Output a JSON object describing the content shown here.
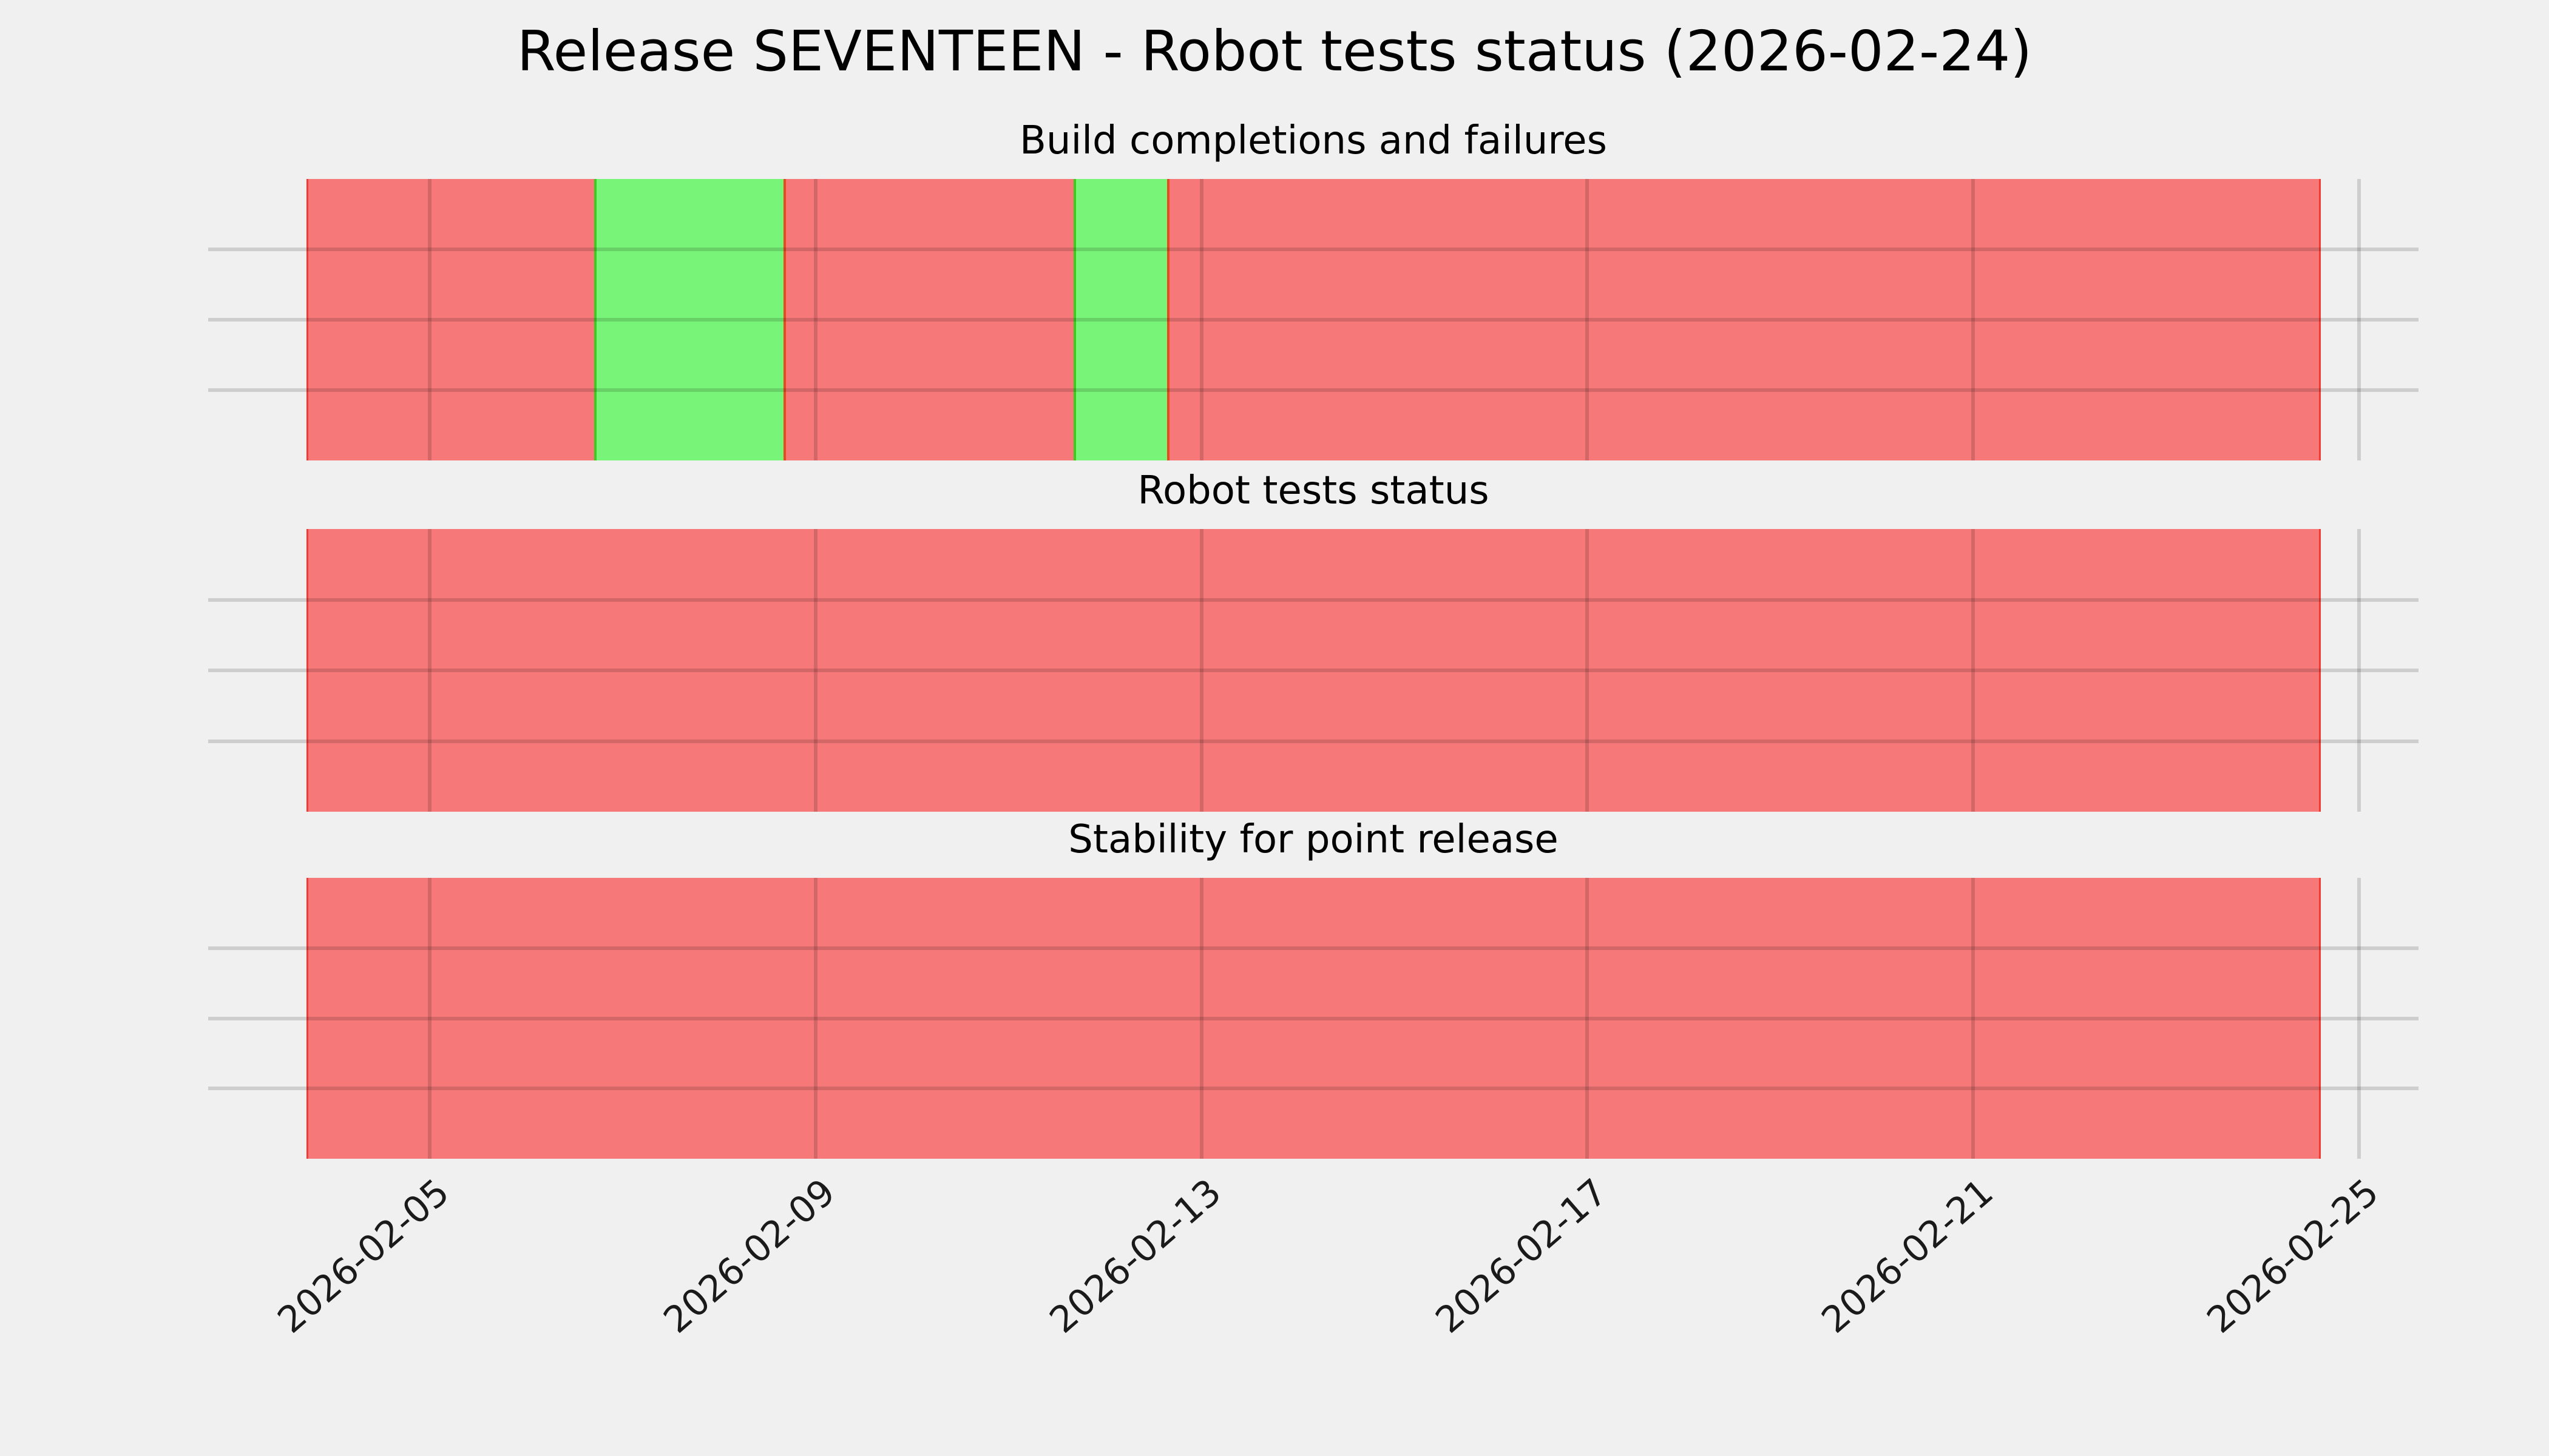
{
  "figure": {
    "title": "Release SEVENTEEN - Robot tests status (2026-02-24)",
    "background_color": "#f0f0f0",
    "gridline_color": "#cbcbcb",
    "status_colors": {
      "fail": "#f67878",
      "pass": "#78f478"
    },
    "edge_colors": {
      "fail_edge": "#f23b33",
      "pass_edge_left": "#3ecb20",
      "pass_edge_right": "#e34c1d"
    }
  },
  "x_axis": {
    "tick_labels": [
      "2026-02-05",
      "2026-02-09",
      "2026-02-13",
      "2026-02-17",
      "2026-02-21",
      "2026-02-25"
    ],
    "rotation_deg": 41
  },
  "chart_data": [
    {
      "type": "bar",
      "variant": "status-timeline",
      "title": "Build completions and failures",
      "ylim": [
        0,
        1
      ],
      "grid": true,
      "legend": "none",
      "categories": [
        "2026-02-04",
        "2026-02-05",
        "2026-02-06",
        "2026-02-07",
        "2026-02-08",
        "2026-02-09",
        "2026-02-10",
        "2026-02-11",
        "2026-02-12",
        "2026-02-13",
        "2026-02-14",
        "2026-02-15",
        "2026-02-16",
        "2026-02-17",
        "2026-02-18",
        "2026-02-19",
        "2026-02-20",
        "2026-02-21",
        "2026-02-22",
        "2026-02-23",
        "2026-02-24"
      ],
      "values": [
        "fail",
        "fail",
        "fail",
        "pass",
        "pass",
        "fail",
        "fail",
        "fail",
        "pass",
        "fail",
        "fail",
        "fail",
        "fail",
        "fail",
        "fail",
        "fail",
        "fail",
        "fail",
        "fail",
        "fail",
        "fail"
      ]
    },
    {
      "type": "bar",
      "variant": "status-timeline",
      "title": "Robot tests status",
      "ylim": [
        0,
        1
      ],
      "grid": true,
      "legend": "none",
      "categories": [
        "2026-02-04",
        "2026-02-05",
        "2026-02-06",
        "2026-02-07",
        "2026-02-08",
        "2026-02-09",
        "2026-02-10",
        "2026-02-11",
        "2026-02-12",
        "2026-02-13",
        "2026-02-14",
        "2026-02-15",
        "2026-02-16",
        "2026-02-17",
        "2026-02-18",
        "2026-02-19",
        "2026-02-20",
        "2026-02-21",
        "2026-02-22",
        "2026-02-23",
        "2026-02-24"
      ],
      "values": [
        "fail",
        "fail",
        "fail",
        "fail",
        "fail",
        "fail",
        "fail",
        "fail",
        "fail",
        "fail",
        "fail",
        "fail",
        "fail",
        "fail",
        "fail",
        "fail",
        "fail",
        "fail",
        "fail",
        "fail",
        "fail"
      ]
    },
    {
      "type": "bar",
      "variant": "status-timeline",
      "title": "Stability for point release",
      "ylim": [
        0,
        1
      ],
      "grid": true,
      "legend": "none",
      "categories": [
        "2026-02-04",
        "2026-02-05",
        "2026-02-06",
        "2026-02-07",
        "2026-02-08",
        "2026-02-09",
        "2026-02-10",
        "2026-02-11",
        "2026-02-12",
        "2026-02-13",
        "2026-02-14",
        "2026-02-15",
        "2026-02-16",
        "2026-02-17",
        "2026-02-18",
        "2026-02-19",
        "2026-02-20",
        "2026-02-21",
        "2026-02-22",
        "2026-02-23",
        "2026-02-24"
      ],
      "values": [
        "fail",
        "fail",
        "fail",
        "fail",
        "fail",
        "fail",
        "fail",
        "fail",
        "fail",
        "fail",
        "fail",
        "fail",
        "fail",
        "fail",
        "fail",
        "fail",
        "fail",
        "fail",
        "fail",
        "fail",
        "fail"
      ]
    }
  ]
}
